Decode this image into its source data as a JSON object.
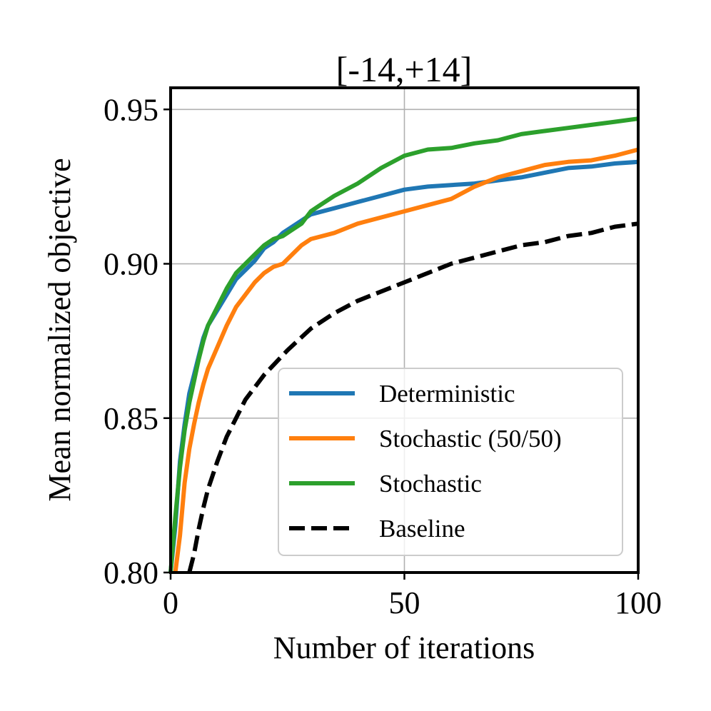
{
  "chart_data": {
    "type": "line",
    "title": "[-14,+14]",
    "xlabel": "Number of iterations",
    "ylabel": "Mean normalized objective",
    "xlim": [
      0,
      100
    ],
    "ylim": [
      0.8,
      0.957
    ],
    "xticks": [
      0,
      50,
      100
    ],
    "xtick_labels": [
      "0",
      "50",
      "100"
    ],
    "yticks": [
      0.8,
      0.85,
      0.9,
      0.95
    ],
    "ytick_labels": [
      "0.80",
      "0.85",
      "0.90",
      "0.95"
    ],
    "grid": true,
    "legend_position": "lower-right",
    "series": [
      {
        "name": "Deterministic",
        "color": "#1f77b4",
        "dash": "solid",
        "x": [
          0,
          1,
          2,
          3,
          4,
          5,
          6,
          7,
          8,
          10,
          12,
          14,
          16,
          18,
          20,
          22,
          24,
          26,
          28,
          30,
          35,
          40,
          45,
          50,
          55,
          60,
          65,
          70,
          75,
          80,
          85,
          90,
          95,
          100
        ],
        "y": [
          0.8,
          0.815,
          0.836,
          0.848,
          0.858,
          0.864,
          0.87,
          0.876,
          0.88,
          0.885,
          0.89,
          0.895,
          0.898,
          0.901,
          0.905,
          0.907,
          0.91,
          0.912,
          0.914,
          0.916,
          0.918,
          0.92,
          0.922,
          0.924,
          0.925,
          0.9255,
          0.926,
          0.927,
          0.928,
          0.9295,
          0.931,
          0.9315,
          0.9325,
          0.933
        ]
      },
      {
        "name": "Stochastic (50/50)",
        "color": "#ff7f0e",
        "dash": "solid",
        "x": [
          1,
          2,
          3,
          4,
          5,
          6,
          7,
          8,
          10,
          12,
          14,
          16,
          18,
          20,
          22,
          24,
          26,
          28,
          30,
          35,
          40,
          45,
          50,
          55,
          60,
          65,
          70,
          75,
          80,
          85,
          90,
          95,
          100
        ],
        "y": [
          0.8,
          0.812,
          0.829,
          0.84,
          0.848,
          0.855,
          0.861,
          0.866,
          0.873,
          0.88,
          0.886,
          0.89,
          0.894,
          0.897,
          0.899,
          0.9,
          0.903,
          0.906,
          0.908,
          0.91,
          0.913,
          0.915,
          0.917,
          0.919,
          0.921,
          0.925,
          0.928,
          0.93,
          0.932,
          0.933,
          0.9335,
          0.935,
          0.937
        ]
      },
      {
        "name": "Stochastic",
        "color": "#2ca02c",
        "dash": "solid",
        "x": [
          0,
          1,
          2,
          3,
          4,
          5,
          6,
          7,
          8,
          10,
          12,
          14,
          16,
          18,
          20,
          22,
          24,
          26,
          28,
          30,
          32,
          35,
          40,
          45,
          50,
          55,
          60,
          65,
          70,
          75,
          80,
          85,
          90,
          95,
          100
        ],
        "y": [
          0.8,
          0.818,
          0.834,
          0.846,
          0.855,
          0.862,
          0.869,
          0.875,
          0.88,
          0.886,
          0.892,
          0.897,
          0.9,
          0.903,
          0.906,
          0.908,
          0.909,
          0.911,
          0.913,
          0.917,
          0.919,
          0.922,
          0.926,
          0.931,
          0.935,
          0.937,
          0.9375,
          0.939,
          0.94,
          0.942,
          0.943,
          0.944,
          0.945,
          0.946,
          0.947
        ]
      },
      {
        "name": "Baseline",
        "color": "#000000",
        "dash": "dashed",
        "x": [
          4,
          5,
          6,
          7,
          8,
          10,
          12,
          14,
          16,
          18,
          20,
          25,
          30,
          35,
          40,
          45,
          50,
          55,
          60,
          65,
          70,
          75,
          80,
          85,
          90,
          95,
          100
        ],
        "y": [
          0.8,
          0.806,
          0.814,
          0.821,
          0.827,
          0.836,
          0.844,
          0.85,
          0.856,
          0.86,
          0.864,
          0.872,
          0.879,
          0.884,
          0.888,
          0.891,
          0.894,
          0.897,
          0.9,
          0.902,
          0.904,
          0.906,
          0.907,
          0.909,
          0.91,
          0.912,
          0.913
        ]
      }
    ]
  }
}
